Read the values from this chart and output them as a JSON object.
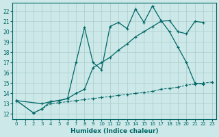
{
  "xlabel": "Humidex (Indice chaleur)",
  "bg_color": "#cce8e8",
  "line_color": "#006666",
  "grid_color": "#aacccc",
  "xlim": [
    -0.5,
    23.5
  ],
  "ylim": [
    11.5,
    22.8
  ],
  "xticks": [
    0,
    1,
    2,
    3,
    4,
    5,
    6,
    7,
    8,
    9,
    10,
    11,
    12,
    13,
    14,
    15,
    16,
    17,
    18,
    19,
    20,
    21,
    22,
    23
  ],
  "yticks": [
    12,
    13,
    14,
    15,
    16,
    17,
    18,
    19,
    20,
    21,
    22
  ],
  "line1_x": [
    0,
    2,
    3,
    4,
    5,
    6,
    7,
    8,
    9,
    10,
    11,
    12,
    13,
    14,
    15,
    16,
    17,
    18,
    19,
    20,
    21,
    22
  ],
  "line1_y": [
    13.3,
    12.1,
    12.5,
    13.2,
    13.3,
    13.5,
    17.0,
    20.4,
    17.0,
    16.3,
    20.5,
    20.9,
    20.3,
    22.2,
    20.9,
    22.5,
    21.1,
    20.0,
    18.5,
    17.0,
    15.0,
    14.9
  ],
  "line2_x": [
    0,
    3,
    4,
    5,
    6,
    7,
    8,
    9,
    10,
    11,
    12,
    13,
    14,
    15,
    16,
    17,
    18,
    19,
    20,
    21,
    22
  ],
  "line2_y": [
    13.3,
    13.0,
    13.2,
    13.3,
    13.5,
    14.0,
    14.4,
    16.5,
    17.0,
    17.5,
    18.2,
    18.8,
    19.5,
    20.0,
    20.5,
    21.0,
    21.1,
    20.0,
    19.8,
    21.0,
    20.9
  ],
  "line3_x": [
    0,
    2,
    3,
    4,
    5,
    6,
    7,
    8,
    9,
    10,
    11,
    12,
    13,
    14,
    15,
    16,
    17,
    18,
    19,
    20,
    21,
    22,
    23
  ],
  "line3_y": [
    13.3,
    12.1,
    12.5,
    13.0,
    13.1,
    13.2,
    13.3,
    13.4,
    13.5,
    13.6,
    13.7,
    13.8,
    13.9,
    14.0,
    14.1,
    14.2,
    14.4,
    14.5,
    14.6,
    14.8,
    14.9,
    15.0,
    15.1
  ],
  "line1_marker": "+",
  "line2_marker": "+",
  "line3_marker": "+"
}
